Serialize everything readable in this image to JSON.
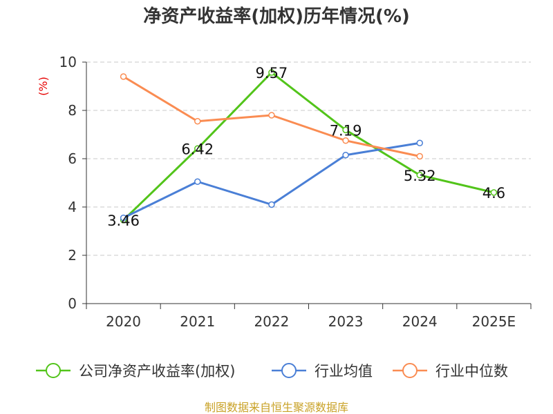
{
  "chart_data": {
    "type": "line",
    "title": "净资产收益率(加权)历年情况(%)",
    "ylabel": "(%)",
    "xlabel": "",
    "categories": [
      "2020",
      "2021",
      "2022",
      "2023",
      "2024",
      "2025E"
    ],
    "ylim": [
      0,
      10
    ],
    "yticks": [
      0,
      2,
      4,
      6,
      8,
      10
    ],
    "grid": true,
    "legend_position": "bottom",
    "series": [
      {
        "name": "公司净资产收益率(加权)",
        "color": "#52c41a",
        "values": [
          3.46,
          6.42,
          9.57,
          7.19,
          5.32,
          4.6
        ],
        "labels": [
          "3.46",
          "6.42",
          "9.57",
          "7.19",
          "5.32",
          "4.6"
        ]
      },
      {
        "name": "行业均值",
        "color": "#4a7fd6",
        "values": [
          3.55,
          5.05,
          4.1,
          6.15,
          6.65,
          null
        ]
      },
      {
        "name": "行业中位数",
        "color": "#fa8c52",
        "values": [
          9.4,
          7.55,
          7.8,
          6.75,
          6.1,
          null
        ]
      }
    ],
    "source": "制图数据来自恒生聚源数据库"
  }
}
